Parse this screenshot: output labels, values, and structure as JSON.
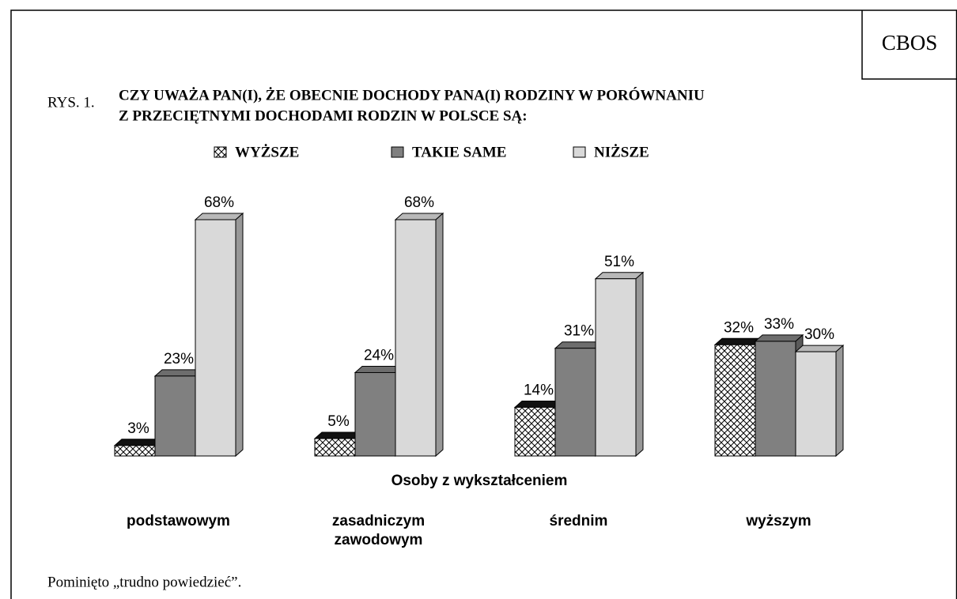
{
  "chart_data": {
    "type": "bar3d",
    "source": "CBOS",
    "figure_label": "RYS. 1.",
    "title": "CZY UWAŻA PAN(I), ŻE OBECNIE DOCHODY PANA(I) RODZINY W PORÓWNANIU",
    "subtitle": "Z PRZECIĘTNYMI DOCHODAMI RODZIN W POLSCE SĄ:",
    "x_label": "Osoby z wykształceniem",
    "categories": [
      "podstawowym",
      "zasadniczym\nzawodowym",
      "średnim",
      "wyższym"
    ],
    "series": [
      {
        "name": "WYŻSZE",
        "color": "#000000",
        "pattern": "crosshatch",
        "values": [
          3,
          5,
          14,
          32
        ],
        "value_labels": [
          "3%",
          "5%",
          "14%",
          "32%"
        ]
      },
      {
        "name": "TAKIE SAME",
        "color": "#808080",
        "values": [
          23,
          24,
          31,
          33
        ],
        "value_labels": [
          "23%",
          "24%",
          "31%",
          "33%"
        ]
      },
      {
        "name": "NIŻSZE",
        "color": "#d9d9d9",
        "values": [
          68,
          68,
          51,
          30
        ],
        "value_labels": [
          "68%",
          "68%",
          "51%",
          "30%"
        ]
      }
    ],
    "ylim": [
      0,
      68
    ],
    "note": "Pominięto „trudno powiedzieć”."
  }
}
